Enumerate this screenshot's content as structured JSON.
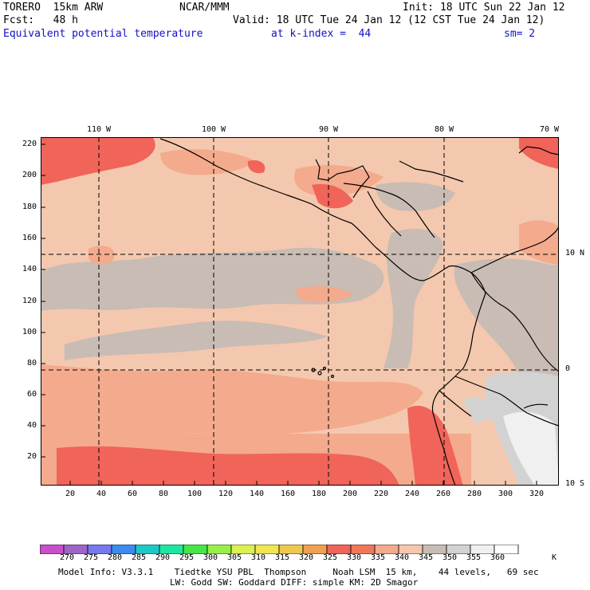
{
  "header": {
    "model": "TORERO  15km ARW",
    "center": "NCAR/MMM",
    "init": "Init: 18 UTC Sun 22 Jan 12",
    "forecast": "Fcst:   48 h",
    "valid": "Valid: 18 UTC Tue 24 Jan 12 (12 CST Tue 24 Jan 12)",
    "field": "Equivalent potential temperature",
    "level": "at k-index =  44",
    "smoothing": "sm= 2"
  },
  "map": {
    "lon_labels": [
      "110 W",
      "100 W",
      "90 W",
      "80 W",
      "70 W"
    ],
    "lat_labels": [
      "10 N",
      "0",
      "10 S"
    ],
    "y_ticks": [
      "220",
      "200",
      "180",
      "160",
      "140",
      "120",
      "100",
      "80",
      "60",
      "40",
      "20"
    ],
    "x_ticks": [
      "20",
      "40",
      "60",
      "80",
      "100",
      "120",
      "140",
      "160",
      "180",
      "200",
      "220",
      "240",
      "260",
      "280",
      "300",
      "320"
    ],
    "colors": {
      "ocean_warm": "#f4c8ae",
      "cool_gray": "#c8bcb4",
      "warm_salmon": "#f4aa8c",
      "hot_red": "#f0645a",
      "cold_gray": "#d2d2d2",
      "very_cold": "#f0f0f0"
    }
  },
  "colorbar": {
    "unit": "K",
    "labels": [
      "270",
      "275",
      "280",
      "285",
      "290",
      "295",
      "300",
      "305",
      "310",
      "315",
      "320",
      "325",
      "330",
      "335",
      "340",
      "345",
      "350",
      "355",
      "360"
    ],
    "colors": [
      "#c850c8",
      "#a064c8",
      "#7878f0",
      "#3c8cf0",
      "#1ec8c8",
      "#1ee6a0",
      "#46e646",
      "#96f046",
      "#dcf050",
      "#f0e650",
      "#f0c850",
      "#f0a050",
      "#f0645a",
      "#f0785a",
      "#f4aa8c",
      "#f4c8ae",
      "#c8bcb4",
      "#d2d2d2",
      "#f0f0f0",
      "#ffffff"
    ]
  },
  "footer": {
    "line1": "Model Info: V3.3.1    Tiedtke YSU PBL  Thompson     Noah LSM  15 km,    44 levels,   69 sec",
    "line2": "LW: Godd SW: Goddard DIFF: simple KM: 2D Smagor"
  }
}
